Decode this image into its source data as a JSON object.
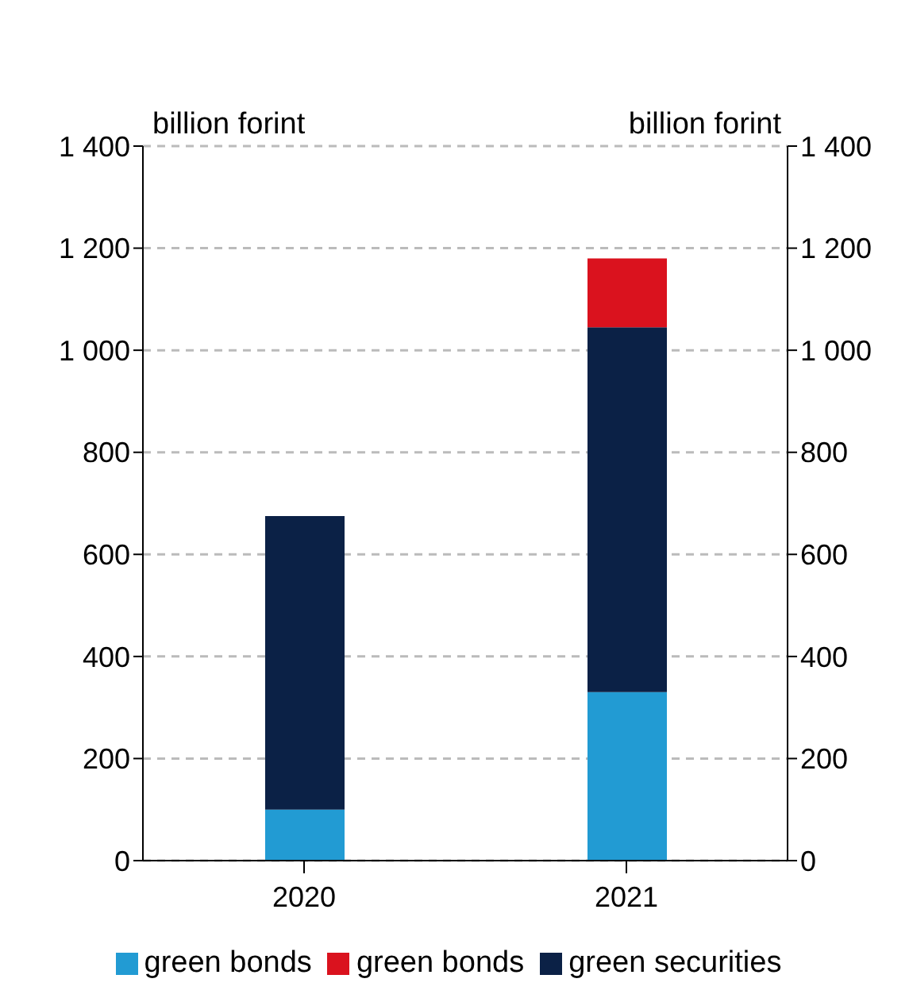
{
  "chart_data": {
    "type": "bar",
    "stacked": true,
    "categories": [
      "2020",
      "2021"
    ],
    "series": [
      {
        "name": "green bonds",
        "color": "#229bd3",
        "values": [
          100,
          330
        ]
      },
      {
        "name": "green securities",
        "color": "#0b2146",
        "values": [
          575,
          715
        ]
      },
      {
        "name": "green bonds",
        "color": "#da121e",
        "values": [
          null,
          135
        ]
      }
    ],
    "ylabel": "billion forint",
    "y2label": "billion forint",
    "ylim": [
      0,
      1400
    ],
    "yticks": [
      0,
      200,
      400,
      600,
      800,
      1000,
      {
        "value": 1200,
        "label": "1 200"
      },
      {
        "value": 1400,
        "label": "1 400"
      }
    ],
    "y2lim": [
      0,
      1400
    ],
    "y2ticks": [
      0,
      200,
      400,
      600,
      800,
      1000,
      {
        "value": 1200,
        "label": "1 200"
      },
      {
        "value": 1400,
        "label": "1 400"
      }
    ],
    "grid": "y",
    "legend": "bottom"
  }
}
